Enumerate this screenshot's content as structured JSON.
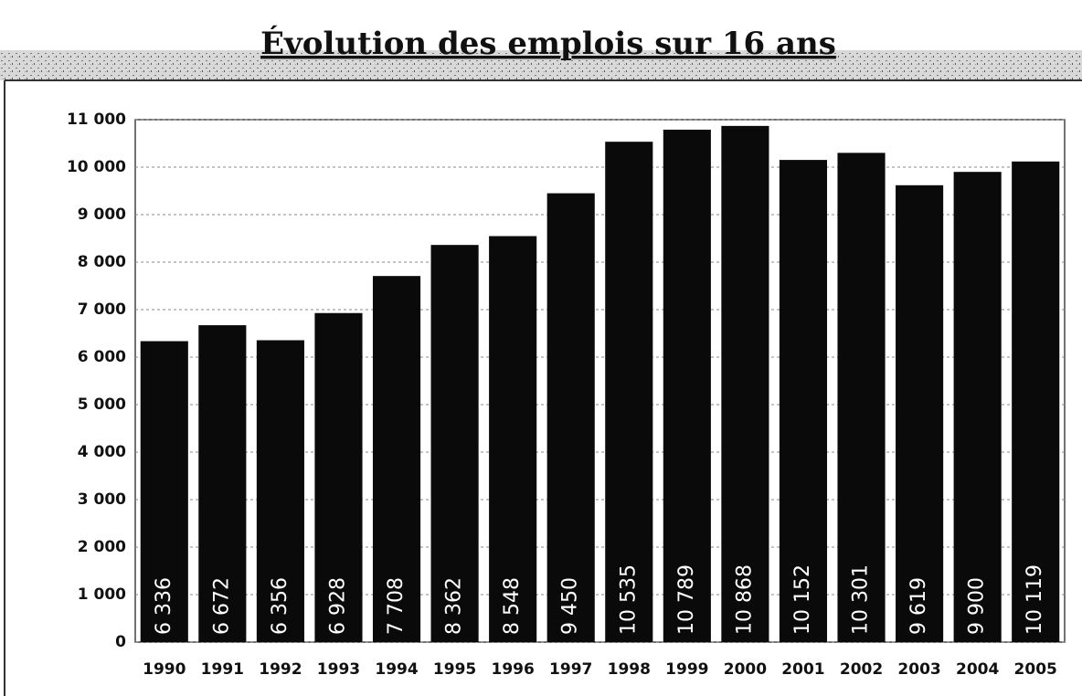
{
  "chart_data": {
    "type": "bar",
    "title": "Évolution des emplois sur 16 ans",
    "categories": [
      "1990",
      "1991",
      "1992",
      "1993",
      "1994",
      "1995",
      "1996",
      "1997",
      "1998",
      "1999",
      "2000",
      "2001",
      "2002",
      "2003",
      "2004",
      "2005"
    ],
    "values": [
      6336,
      6672,
      6356,
      6928,
      7708,
      8362,
      8548,
      9450,
      10535,
      10789,
      10868,
      10152,
      10301,
      9619,
      9900,
      10119
    ],
    "value_labels": [
      "6 336",
      "6 672",
      "6 356",
      "6 928",
      "7 708",
      "8 362",
      "8 548",
      "9 450",
      "10 535",
      "10 789",
      "10 868",
      "10 152",
      "10 301",
      "9 619",
      "9 900",
      "10 119"
    ],
    "color": "#0a0a0a",
    "ylim": [
      0,
      11000
    ],
    "yticks": [
      0,
      {
        "value": 1000,
        "label": "1 000"
      },
      {
        "value": 2000,
        "label": "2 000"
      },
      {
        "value": 3000,
        "label": "3 000"
      },
      {
        "value": 4000,
        "label": "4 000"
      },
      {
        "value": 5000,
        "label": "5 000"
      },
      {
        "value": 6000,
        "label": "6 000"
      },
      {
        "value": 7000,
        "label": "7 000"
      },
      {
        "value": 8000,
        "label": "8 000"
      },
      {
        "value": 9000,
        "label": "9 000"
      },
      {
        "value": 10000,
        "label": "10 000"
      },
      {
        "value": 11000,
        "label": "11 000"
      }
    ],
    "grid": true
  }
}
